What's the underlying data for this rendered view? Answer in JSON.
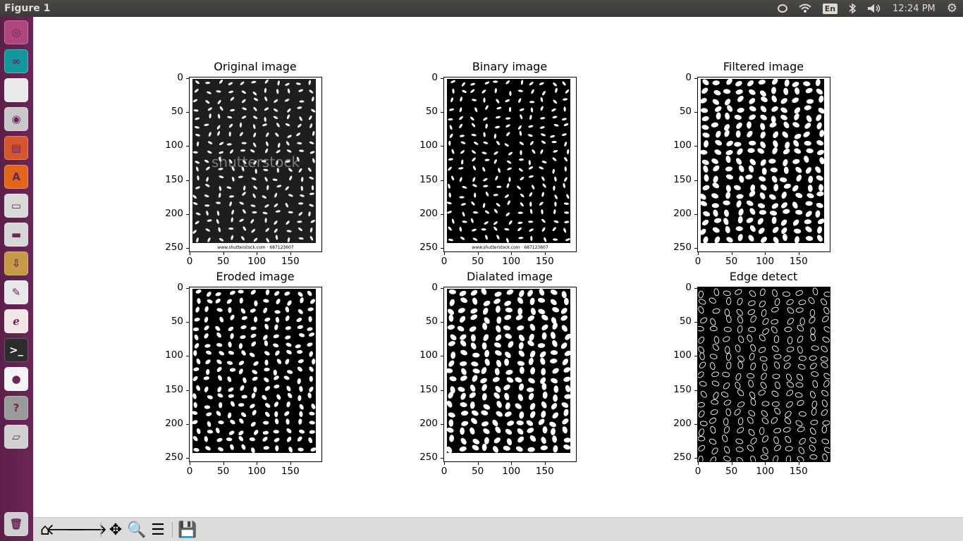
{
  "window": {
    "title": "Figure 1"
  },
  "tray": {
    "language": "En",
    "clock": "12:24 PM"
  },
  "launcher": {
    "items": [
      {
        "name": "ubuntu-dash",
        "glyph": "◎",
        "color": "#b0457c"
      },
      {
        "name": "arduino",
        "glyph": "∞",
        "color": "#14979b"
      },
      {
        "name": "files-blank",
        "glyph": "",
        "color": "#e9e9e9"
      },
      {
        "name": "camera",
        "glyph": "◉",
        "color": "#c8c8c8"
      },
      {
        "name": "impress",
        "glyph": "▤",
        "color": "#d8562b"
      },
      {
        "name": "software-center",
        "glyph": "A",
        "color": "#e2651c"
      },
      {
        "name": "archive",
        "glyph": "▭",
        "color": "#d9d9d9"
      },
      {
        "name": "window",
        "glyph": "▬",
        "color": "#d6d6d6"
      },
      {
        "name": "download-box",
        "glyph": "⇩",
        "color": "#c79a48"
      },
      {
        "name": "text-editor",
        "glyph": "✎",
        "color": "#e8e8e8"
      },
      {
        "name": "pdf-viewer",
        "glyph": "ℯ",
        "color": "#f2e6e6"
      },
      {
        "name": "terminal",
        "glyph": ">_",
        "color": "#2c2c2c"
      },
      {
        "name": "chrome",
        "glyph": "●",
        "color": "#f4f4f4"
      },
      {
        "name": "help",
        "glyph": "?",
        "color": "#9a9a9a"
      },
      {
        "name": "drive",
        "glyph": "▱",
        "color": "#d0d0d0"
      },
      {
        "name": "trash",
        "glyph": "🗑",
        "color": "#cfcfcf"
      }
    ]
  },
  "subplots": [
    {
      "title": "Original image",
      "style": "original",
      "watermark": "www.shutterstock.com · 687123607",
      "overlay": "shutterstock"
    },
    {
      "title": "Binary image",
      "style": "binary",
      "watermark": "www.shutterstock.com · 687123607",
      "overlay": ""
    },
    {
      "title": "Filtered image",
      "style": "filtered",
      "watermark": "",
      "overlay": ""
    },
    {
      "title": "Eroded image",
      "style": "eroded",
      "watermark": "",
      "overlay": ""
    },
    {
      "title": "Dialated image",
      "style": "dilated",
      "watermark": "",
      "overlay": ""
    },
    {
      "title": "Edge detect",
      "style": "edge",
      "watermark": "",
      "overlay": ""
    }
  ],
  "axes": {
    "yticks": [
      "0",
      "50",
      "100",
      "150",
      "200",
      "250"
    ],
    "xticks": [
      "0",
      "50",
      "100",
      "150"
    ]
  },
  "toolbar": {
    "buttons": [
      {
        "name": "home-button",
        "icon": "home-icon",
        "glyph": "⌂"
      },
      {
        "name": "back-button",
        "icon": "arrow-left-icon",
        "glyph": "🡐"
      },
      {
        "name": "forward-button",
        "icon": "arrow-right-icon",
        "glyph": "🡒"
      },
      {
        "name": "pan-button",
        "icon": "move-icon",
        "glyph": "✥"
      },
      {
        "name": "zoom-button",
        "icon": "magnifier-icon",
        "glyph": "🔍"
      },
      {
        "name": "configure-subplots-button",
        "icon": "sliders-icon",
        "glyph": "☰"
      },
      {
        "name": "save-button",
        "icon": "floppy-icon",
        "glyph": "💾"
      }
    ]
  }
}
